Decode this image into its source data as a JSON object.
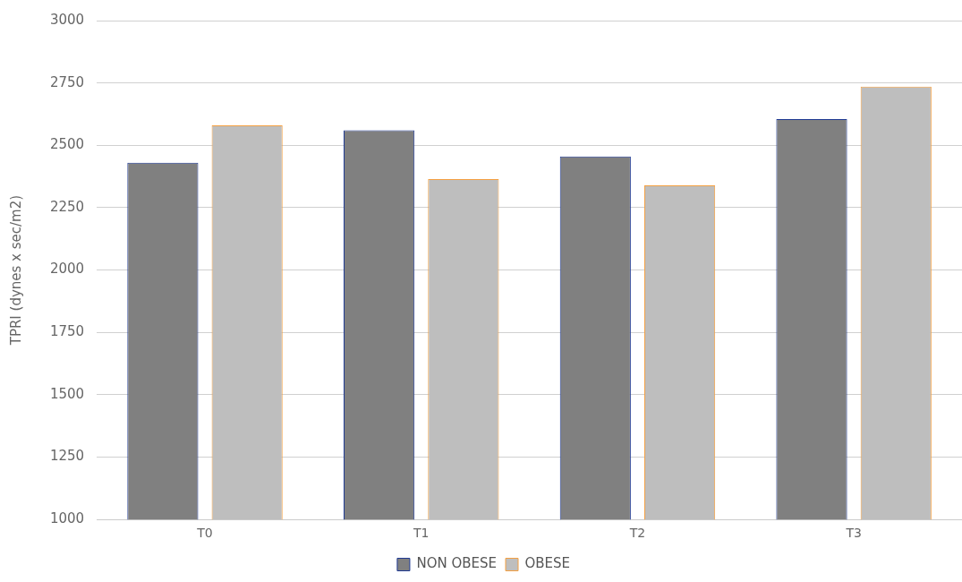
{
  "chart_data": {
    "type": "bar",
    "ylabel": "TPRI (dynes x sec/m2)",
    "categories": [
      "T0",
      "T1",
      "T2",
      "T3"
    ],
    "series": [
      {
        "name": "NON OBESE",
        "color": "#808080",
        "values": [
          2430,
          2560,
          2455,
          2605
        ]
      },
      {
        "name": "OBESE",
        "color": "#bebebe",
        "values": [
          2580,
          2365,
          2340,
          2735
        ]
      }
    ],
    "ylim": [
      1000,
      3000
    ],
    "yticks": [
      1000,
      1250,
      1500,
      1750,
      2000,
      2250,
      2500,
      2750,
      3000
    ],
    "grid": "y",
    "legend": "bottom"
  }
}
